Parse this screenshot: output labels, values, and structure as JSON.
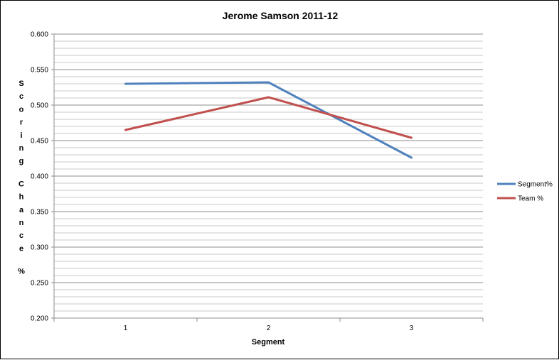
{
  "chart_data": {
    "type": "line",
    "title": "Jerome Samson 2011-12",
    "xlabel": "Segment",
    "ylabel": "Scoring Chance %",
    "categories": [
      "1",
      "2",
      "3"
    ],
    "ylim": [
      0.2,
      0.6
    ],
    "ytick_labels": [
      "0.200",
      "0.250",
      "0.300",
      "0.350",
      "0.400",
      "0.450",
      "0.500",
      "0.550",
      "0.600"
    ],
    "minor_gridlines": true,
    "legend_position": "right",
    "series": [
      {
        "name": "Segment%",
        "color": "#4f81bd",
        "values": [
          0.53,
          0.532,
          0.426
        ]
      },
      {
        "name": "Team %",
        "color": "#c0504d",
        "values": [
          0.465,
          0.511,
          0.454
        ]
      }
    ]
  }
}
